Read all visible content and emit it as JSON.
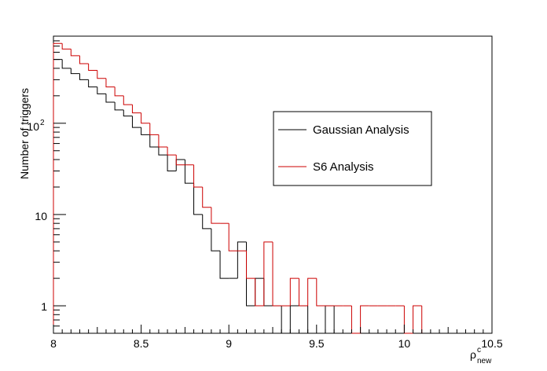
{
  "chart_data": {
    "type": "histogram-step",
    "title": "",
    "xlabel": {
      "main": "ρ",
      "sup": "c",
      "sub": "new"
    },
    "ylabel": "Number of triggers",
    "xlim": [
      8,
      10.5
    ],
    "ylim": [
      0.5,
      900
    ],
    "yscale": "log",
    "bin_width": 0.05,
    "x_ticks": [
      {
        "value": 8,
        "label": "8"
      },
      {
        "value": 8.5,
        "label": "8.5"
      },
      {
        "value": 9,
        "label": "9"
      },
      {
        "value": 9.5,
        "label": "9.5"
      },
      {
        "value": 10,
        "label": "10"
      },
      {
        "value": 10.5,
        "label": "10.5"
      }
    ],
    "y_ticks": [
      {
        "value": 1,
        "label": "1"
      },
      {
        "value": 10,
        "label": "10"
      },
      {
        "value": 100,
        "label_base": "10",
        "label_exp": "2"
      }
    ],
    "series": [
      {
        "name": "Gaussian Analysis",
        "color": "#000000",
        "x_start": 8.0,
        "values": [
          500,
          400,
          350,
          300,
          250,
          210,
          170,
          140,
          120,
          90,
          75,
          55,
          45,
          30,
          40,
          22,
          10,
          7,
          4,
          2,
          2,
          5,
          1,
          2,
          1,
          1,
          0,
          1,
          1,
          0,
          0,
          1
        ]
      },
      {
        "name": "S6 Analysis",
        "color": "#cc0000",
        "x_start": 8.0,
        "values": [
          750,
          650,
          550,
          450,
          380,
          310,
          250,
          200,
          160,
          130,
          100,
          75,
          55,
          45,
          35,
          35,
          20,
          12,
          8,
          8,
          4,
          4,
          2,
          1,
          5,
          1,
          1,
          2,
          1,
          2,
          1,
          1,
          1,
          1,
          0,
          1,
          1,
          1,
          1,
          1,
          0,
          1
        ]
      }
    ],
    "legend": {
      "placement": "center-right",
      "entries": [
        "Gaussian Analysis",
        "S6 Analysis"
      ]
    },
    "grid": false
  }
}
